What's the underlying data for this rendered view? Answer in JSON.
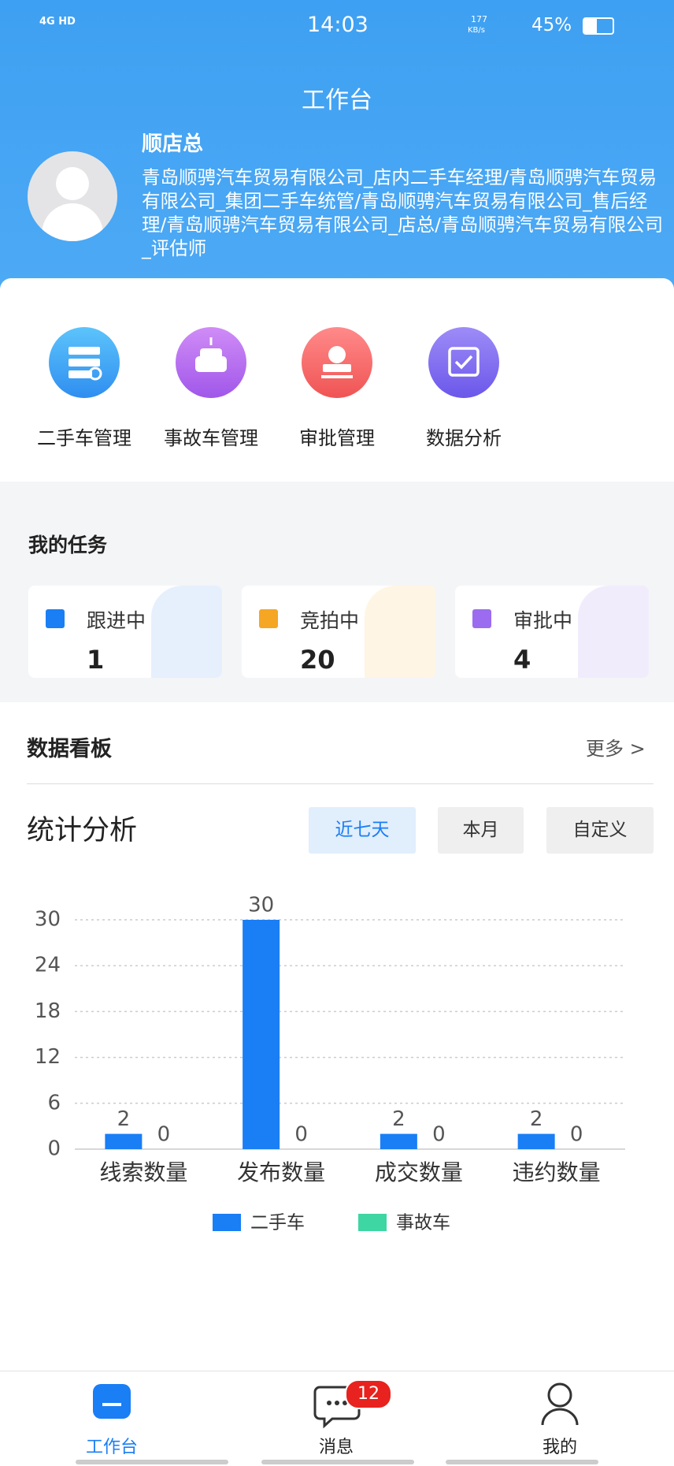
{
  "status": {
    "network": "4G HD",
    "time": "14:03",
    "speed": "177",
    "speed_unit": "KB/s",
    "battery": "45%"
  },
  "header": {
    "title": "工作台"
  },
  "profile": {
    "name": "顺店总",
    "roles": "青岛顺骋汽车贸易有限公司_店内二手车经理/青岛顺骋汽车贸易有限公司_集团二手车统管/青岛顺骋汽车贸易有限公司_售后经理/青岛顺骋汽车贸易有限公司_店总/青岛顺骋汽车贸易有限公司_评估师"
  },
  "menu": [
    {
      "label": "二手车管理"
    },
    {
      "label": "事故车管理"
    },
    {
      "label": "审批管理"
    },
    {
      "label": "数据分析"
    }
  ],
  "tasks": {
    "title": "我的任务",
    "items": [
      {
        "label": "跟进中",
        "count": 1
      },
      {
        "label": "竞拍中",
        "count": 20
      },
      {
        "label": "审批中",
        "count": 4
      }
    ]
  },
  "dashboard": {
    "title": "数据看板",
    "more": "更多 >"
  },
  "range_tabs": [
    {
      "label": "近七天",
      "active": true
    },
    {
      "label": "本月",
      "active": false
    },
    {
      "label": "自定义",
      "active": false
    }
  ],
  "chart_data": {
    "type": "bar",
    "title": "统计分析",
    "categories": [
      "线索数量",
      "发布数量",
      "成交数量",
      "违约数量"
    ],
    "series": [
      {
        "name": "二手车",
        "color": "#1a7ef5",
        "values": [
          2,
          30,
          2,
          2
        ]
      },
      {
        "name": "事故车",
        "color": "#3ed6a3",
        "values": [
          0,
          0,
          0,
          0
        ]
      }
    ],
    "ylim": [
      0,
      30
    ],
    "yticks": [
      0,
      6,
      12,
      18,
      24,
      30
    ],
    "grid": true
  },
  "nav": {
    "items": [
      {
        "label": "工作台",
        "active": true
      },
      {
        "label": "消息",
        "active": false
      },
      {
        "label": "我的",
        "active": false
      }
    ],
    "badge": 12
  }
}
